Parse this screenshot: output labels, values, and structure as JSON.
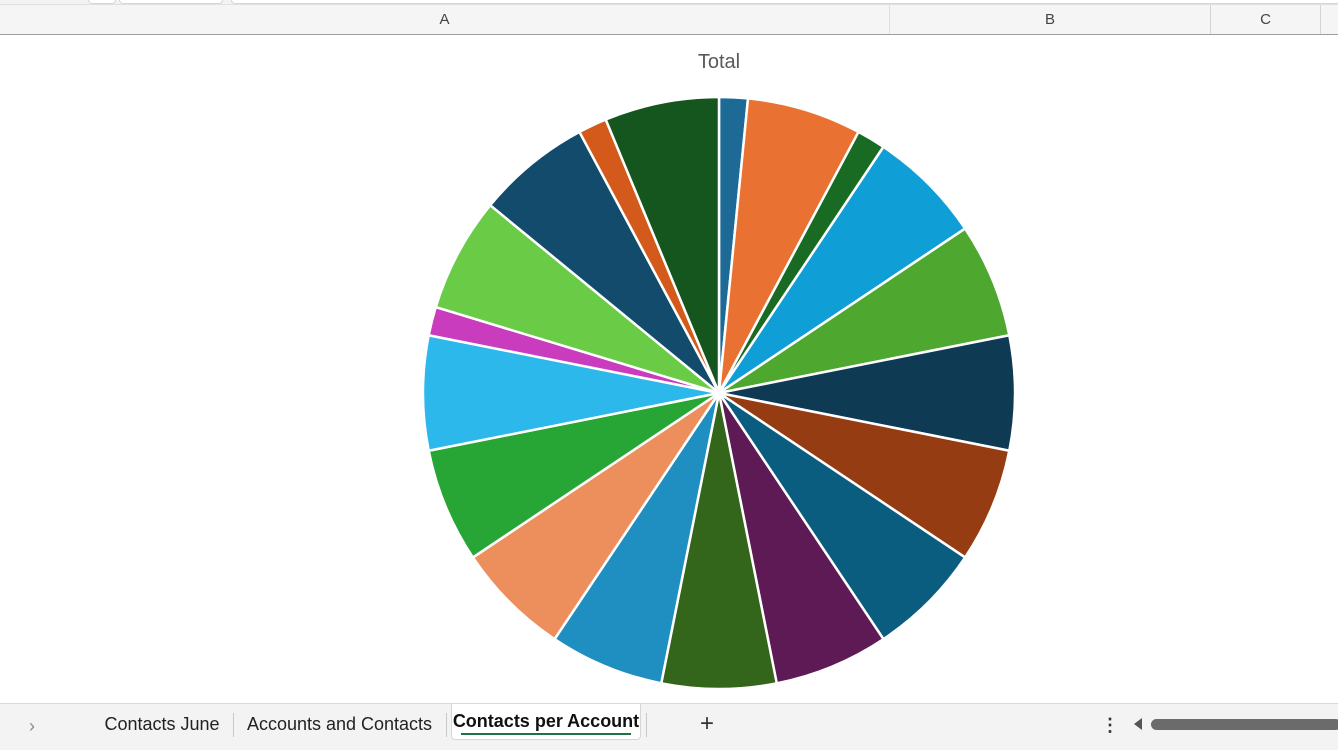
{
  "columns": [
    {
      "label": "A"
    },
    {
      "label": "B"
    },
    {
      "label": "C"
    }
  ],
  "chart_data": {
    "type": "pie",
    "title": "Total",
    "start_angle_deg": 0,
    "direction": "clockwise",
    "slices": [
      {
        "value": 1,
        "color": "#1d6a96"
      },
      {
        "value": 4,
        "color": "#e97132"
      },
      {
        "value": 1,
        "color": "#196b24"
      },
      {
        "value": 4,
        "color": "#0f9ed5"
      },
      {
        "value": 4,
        "color": "#4ea72e"
      },
      {
        "value": 4,
        "color": "#0e3a54"
      },
      {
        "value": 4,
        "color": "#963c12"
      },
      {
        "value": 4,
        "color": "#0b5d80"
      },
      {
        "value": 4,
        "color": "#5e1a55"
      },
      {
        "value": 4,
        "color": "#33651b"
      },
      {
        "value": 4,
        "color": "#1f8fc2"
      },
      {
        "value": 4,
        "color": "#ec8f5d"
      },
      {
        "value": 4,
        "color": "#27a535"
      },
      {
        "value": 4,
        "color": "#2db8ec"
      },
      {
        "value": 1,
        "color": "#c83cbd"
      },
      {
        "value": 4,
        "color": "#6acb47"
      },
      {
        "value": 4,
        "color": "#124b6b"
      },
      {
        "value": 1,
        "color": "#d35a1a"
      },
      {
        "value": 4,
        "color": "#15561f"
      }
    ]
  },
  "sheet_tabs": [
    {
      "label": "Contacts June"
    },
    {
      "label": "Accounts and Contacts"
    },
    {
      "label": "Contacts per Account",
      "active": true
    }
  ],
  "icons": {
    "nav": "chevron-right-icon",
    "add": "plus-icon",
    "more": "more-vertical-icon",
    "scroll": "scroll-left-icon"
  },
  "glyphs": {
    "nav": "›",
    "add": "+",
    "more": "⋮"
  },
  "colors": {
    "active_tab_underline": "#1e7145"
  }
}
